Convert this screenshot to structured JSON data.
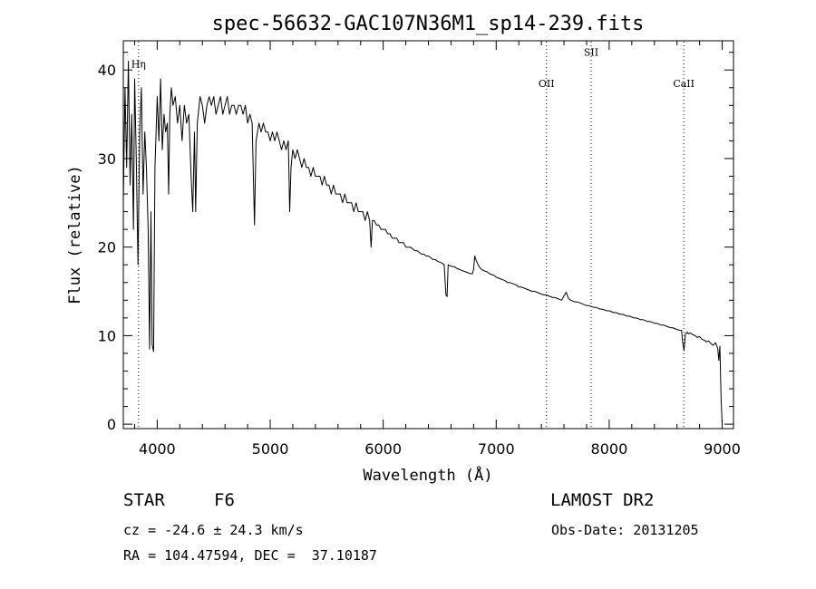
{
  "chart_data": {
    "type": "line",
    "title": "spec-56632-GAC107N36M1_sp14-239.fits",
    "xlabel": "Wavelength (Å)",
    "ylabel": "Flux (relative)",
    "xlim": [
      3700,
      9100
    ],
    "ylim": [
      -0.5,
      43.3
    ],
    "xticks": [
      4000,
      5000,
      6000,
      7000,
      8000,
      9000
    ],
    "yticks": [
      0,
      10,
      20,
      30,
      40
    ],
    "grid": false,
    "series": [
      {
        "points": [
          [
            3700,
            25
          ],
          [
            3715,
            38
          ],
          [
            3730,
            29
          ],
          [
            3745,
            41
          ],
          [
            3760,
            27
          ],
          [
            3775,
            35
          ],
          [
            3790,
            22
          ],
          [
            3800,
            39
          ],
          [
            3815,
            30
          ],
          [
            3830,
            18
          ],
          [
            3845,
            33
          ],
          [
            3860,
            38
          ],
          [
            3875,
            26
          ],
          [
            3890,
            33
          ],
          [
            3905,
            29
          ],
          [
            3920,
            22
          ],
          [
            3933,
            8.5
          ],
          [
            3945,
            24
          ],
          [
            3955,
            9
          ],
          [
            3968,
            8.2
          ],
          [
            3980,
            29
          ],
          [
            4000,
            37
          ],
          [
            4015,
            32
          ],
          [
            4030,
            39
          ],
          [
            4045,
            31
          ],
          [
            4060,
            35
          ],
          [
            4075,
            33
          ],
          [
            4090,
            34
          ],
          [
            4101,
            26
          ],
          [
            4112,
            35
          ],
          [
            4125,
            38
          ],
          [
            4140,
            36
          ],
          [
            4160,
            37
          ],
          [
            4180,
            34
          ],
          [
            4200,
            36
          ],
          [
            4220,
            32
          ],
          [
            4240,
            36
          ],
          [
            4260,
            34
          ],
          [
            4280,
            35
          ],
          [
            4300,
            28
          ],
          [
            4315,
            24
          ],
          [
            4330,
            33
          ],
          [
            4340,
            24
          ],
          [
            4355,
            34
          ],
          [
            4380,
            37
          ],
          [
            4400,
            36
          ],
          [
            4420,
            34
          ],
          [
            4440,
            36
          ],
          [
            4460,
            37
          ],
          [
            4480,
            36
          ],
          [
            4500,
            37
          ],
          [
            4520,
            35
          ],
          [
            4540,
            36
          ],
          [
            4560,
            37
          ],
          [
            4580,
            35
          ],
          [
            4600,
            36
          ],
          [
            4620,
            37
          ],
          [
            4640,
            35
          ],
          [
            4660,
            36
          ],
          [
            4680,
            36
          ],
          [
            4700,
            35
          ],
          [
            4720,
            36
          ],
          [
            4740,
            36
          ],
          [
            4760,
            35
          ],
          [
            4780,
            36
          ],
          [
            4800,
            34
          ],
          [
            4820,
            35
          ],
          [
            4840,
            34
          ],
          [
            4861,
            22.5
          ],
          [
            4875,
            32
          ],
          [
            4900,
            34
          ],
          [
            4920,
            33
          ],
          [
            4940,
            34
          ],
          [
            4960,
            33
          ],
          [
            4980,
            33
          ],
          [
            5000,
            32
          ],
          [
            5020,
            33
          ],
          [
            5040,
            32
          ],
          [
            5060,
            33
          ],
          [
            5080,
            32
          ],
          [
            5100,
            31
          ],
          [
            5120,
            32
          ],
          [
            5140,
            31
          ],
          [
            5160,
            32
          ],
          [
            5172,
            24
          ],
          [
            5184,
            29
          ],
          [
            5200,
            31
          ],
          [
            5220,
            30
          ],
          [
            5240,
            31
          ],
          [
            5260,
            30
          ],
          [
            5280,
            29
          ],
          [
            5300,
            30
          ],
          [
            5320,
            29
          ],
          [
            5340,
            29
          ],
          [
            5360,
            28
          ],
          [
            5380,
            29
          ],
          [
            5400,
            28
          ],
          [
            5420,
            28
          ],
          [
            5440,
            28
          ],
          [
            5460,
            27
          ],
          [
            5480,
            28
          ],
          [
            5500,
            27
          ],
          [
            5520,
            27
          ],
          [
            5540,
            26
          ],
          [
            5560,
            27
          ],
          [
            5580,
            26
          ],
          [
            5600,
            26
          ],
          [
            5620,
            26
          ],
          [
            5640,
            25
          ],
          [
            5660,
            26
          ],
          [
            5680,
            25
          ],
          [
            5700,
            25
          ],
          [
            5720,
            25
          ],
          [
            5740,
            24
          ],
          [
            5760,
            25
          ],
          [
            5780,
            24
          ],
          [
            5800,
            24
          ],
          [
            5820,
            24
          ],
          [
            5840,
            23
          ],
          [
            5860,
            24
          ],
          [
            5880,
            23
          ],
          [
            5893,
            20
          ],
          [
            5905,
            23
          ],
          [
            5920,
            23
          ],
          [
            5940,
            22.5
          ],
          [
            5960,
            22.5
          ],
          [
            5980,
            22
          ],
          [
            6000,
            22
          ],
          [
            6020,
            22
          ],
          [
            6040,
            21.5
          ],
          [
            6060,
            21.5
          ],
          [
            6080,
            21
          ],
          [
            6100,
            21
          ],
          [
            6120,
            21
          ],
          [
            6140,
            20.5
          ],
          [
            6160,
            20.5
          ],
          [
            6180,
            20.5
          ],
          [
            6200,
            20
          ],
          [
            6220,
            20
          ],
          [
            6240,
            20
          ],
          [
            6260,
            19.8
          ],
          [
            6280,
            19.6
          ],
          [
            6300,
            19.6
          ],
          [
            6320,
            19.4
          ],
          [
            6340,
            19.2
          ],
          [
            6360,
            19.2
          ],
          [
            6380,
            19
          ],
          [
            6400,
            19
          ],
          [
            6420,
            18.8
          ],
          [
            6440,
            18.6
          ],
          [
            6460,
            18.6
          ],
          [
            6480,
            18.4
          ],
          [
            6500,
            18.3
          ],
          [
            6520,
            18.2
          ],
          [
            6540,
            18
          ],
          [
            6555,
            14.6
          ],
          [
            6565,
            14.4
          ],
          [
            6575,
            18
          ],
          [
            6590,
            17.9
          ],
          [
            6610,
            17.8
          ],
          [
            6630,
            17.8
          ],
          [
            6650,
            17.6
          ],
          [
            6670,
            17.5
          ],
          [
            6690,
            17.4
          ],
          [
            6710,
            17.3
          ],
          [
            6730,
            17.2
          ],
          [
            6750,
            17.1
          ],
          [
            6770,
            17
          ],
          [
            6790,
            17
          ],
          [
            6800,
            17.5
          ],
          [
            6810,
            19
          ],
          [
            6820,
            18.6
          ],
          [
            6840,
            18
          ],
          [
            6860,
            17.6
          ],
          [
            6880,
            17.4
          ],
          [
            6900,
            17.3
          ],
          [
            6920,
            17.2
          ],
          [
            6940,
            17
          ],
          [
            6960,
            16.9
          ],
          [
            6980,
            16.8
          ],
          [
            7000,
            16.6
          ],
          [
            7020,
            16.5
          ],
          [
            7040,
            16.4
          ],
          [
            7060,
            16.3
          ],
          [
            7080,
            16.2
          ],
          [
            7100,
            16
          ],
          [
            7120,
            16
          ],
          [
            7140,
            15.9
          ],
          [
            7160,
            15.8
          ],
          [
            7180,
            15.7
          ],
          [
            7200,
            15.5
          ],
          [
            7220,
            15.5
          ],
          [
            7240,
            15.4
          ],
          [
            7260,
            15.3
          ],
          [
            7280,
            15.2
          ],
          [
            7300,
            15.1
          ],
          [
            7320,
            15
          ],
          [
            7340,
            15
          ],
          [
            7360,
            14.9
          ],
          [
            7380,
            14.8
          ],
          [
            7400,
            14.7
          ],
          [
            7420,
            14.6
          ],
          [
            7440,
            14.6
          ],
          [
            7460,
            14.5
          ],
          [
            7480,
            14.4
          ],
          [
            7500,
            14.3
          ],
          [
            7520,
            14.3
          ],
          [
            7540,
            14.2
          ],
          [
            7560,
            14.1
          ],
          [
            7580,
            14
          ],
          [
            7600,
            14.5
          ],
          [
            7620,
            14.9
          ],
          [
            7640,
            14.2
          ],
          [
            7660,
            14
          ],
          [
            7680,
            13.9
          ],
          [
            7700,
            13.8
          ],
          [
            7720,
            13.8
          ],
          [
            7740,
            13.7
          ],
          [
            7760,
            13.6
          ],
          [
            7780,
            13.5
          ],
          [
            7800,
            13.4
          ],
          [
            7820,
            13.4
          ],
          [
            7840,
            13.3
          ],
          [
            7860,
            13.2
          ],
          [
            7880,
            13.2
          ],
          [
            7900,
            13.1
          ],
          [
            7920,
            13
          ],
          [
            7940,
            13
          ],
          [
            7960,
            12.9
          ],
          [
            7980,
            12.8
          ],
          [
            8000,
            12.8
          ],
          [
            8020,
            12.7
          ],
          [
            8040,
            12.6
          ],
          [
            8060,
            12.6
          ],
          [
            8080,
            12.5
          ],
          [
            8100,
            12.4
          ],
          [
            8120,
            12.4
          ],
          [
            8140,
            12.3
          ],
          [
            8160,
            12.2
          ],
          [
            8180,
            12.2
          ],
          [
            8200,
            12.1
          ],
          [
            8220,
            12
          ],
          [
            8240,
            12
          ],
          [
            8260,
            11.9
          ],
          [
            8280,
            11.8
          ],
          [
            8300,
            11.8
          ],
          [
            8320,
            11.7
          ],
          [
            8340,
            11.6
          ],
          [
            8360,
            11.6
          ],
          [
            8380,
            11.5
          ],
          [
            8400,
            11.4
          ],
          [
            8420,
            11.4
          ],
          [
            8440,
            11.3
          ],
          [
            8460,
            11.2
          ],
          [
            8480,
            11.2
          ],
          [
            8500,
            11.1
          ],
          [
            8520,
            11
          ],
          [
            8540,
            10.9
          ],
          [
            8560,
            10.9
          ],
          [
            8580,
            10.8
          ],
          [
            8600,
            10.7
          ],
          [
            8620,
            10.6
          ],
          [
            8640,
            10.6
          ],
          [
            8650,
            9.3
          ],
          [
            8662,
            8.3
          ],
          [
            8675,
            10.2
          ],
          [
            8690,
            10.4
          ],
          [
            8700,
            10.2
          ],
          [
            8720,
            10.3
          ],
          [
            8740,
            10.1
          ],
          [
            8760,
            10
          ],
          [
            8780,
            9.8
          ],
          [
            8800,
            9.9
          ],
          [
            8820,
            9.6
          ],
          [
            8840,
            9.5
          ],
          [
            8860,
            9.3
          ],
          [
            8880,
            9.4
          ],
          [
            8900,
            9.1
          ],
          [
            8920,
            8.9
          ],
          [
            8940,
            9.2
          ],
          [
            8960,
            8.6
          ],
          [
            8970,
            7.2
          ],
          [
            8980,
            8.8
          ],
          [
            8990,
            3
          ],
          [
            9000,
            0
          ]
        ]
      }
    ],
    "annotations": [
      {
        "label": "Hη",
        "x": 3835,
        "y": 40.3
      },
      {
        "label": "OII",
        "x": 7445,
        "y": 38.1
      },
      {
        "label": "SII",
        "x": 7840,
        "y": 41.6
      },
      {
        "label": "CaII",
        "x": 8660,
        "y": 38.1
      }
    ],
    "reference_lines_x": [
      3835,
      7445,
      7840,
      8660
    ]
  },
  "info": {
    "class_label": "STAR",
    "subclass": "F6",
    "survey": "LAMOST DR2",
    "cz": "cz = -24.6 ± 24.3 km/s",
    "obs_date": "Obs-Date: 20131205",
    "radec": "RA = 104.47594, DEC =  37.10187"
  }
}
